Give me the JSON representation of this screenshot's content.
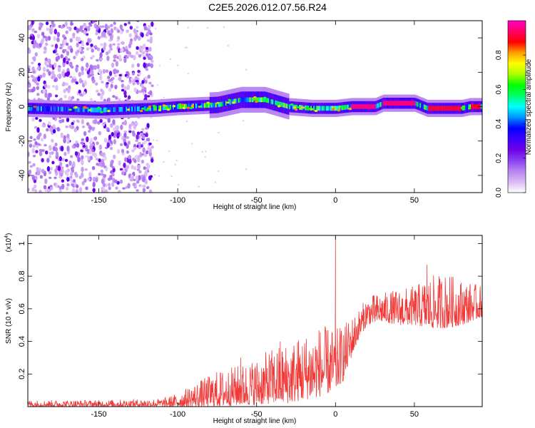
{
  "figure": {
    "title": "C2E5.2026.012.07.56.R24"
  },
  "colors": {
    "snr_line": "#f03a38",
    "frame": "#000000",
    "background": "#ffffff"
  },
  "chart_data": [
    {
      "type": "heatmap",
      "panel": "spectrogram",
      "xlabel": "Height of straight line (km)",
      "ylabel": "Frequency (Hz)",
      "xlim": [
        -195,
        93
      ],
      "ylim": [
        -50,
        50
      ],
      "x_ticks": [
        -150,
        -100,
        -50,
        0,
        50
      ],
      "y_ticks": [
        -40,
        -20,
        0,
        20,
        40
      ],
      "colorbar": {
        "label": "Normalized spectral amplitude",
        "range": [
          0,
          1
        ],
        "ticks": [
          0.0,
          0.2,
          0.4,
          0.6,
          0.8
        ],
        "colormap": [
          "#ffffff",
          "#d9b8f5",
          "#b784f0",
          "#8a3ff0",
          "#6f00e8",
          "#3c00ff",
          "#0000ff",
          "#0094ff",
          "#00ffff",
          "#00ff6a",
          "#00ff00",
          "#aaff00",
          "#ffff00",
          "#ffa000",
          "#ff0000",
          "#ff0066",
          "#ff00c8"
        ]
      },
      "center_track": [
        {
          "x": -195,
          "f": -1
        },
        {
          "x": -150,
          "f": -2
        },
        {
          "x": -115,
          "f": -1
        },
        {
          "x": -100,
          "f": 0
        },
        {
          "x": -75,
          "f": 1
        },
        {
          "x": -60,
          "f": 4
        },
        {
          "x": -45,
          "f": 4
        },
        {
          "x": -30,
          "f": 0
        },
        {
          "x": -15,
          "f": -1
        },
        {
          "x": 0,
          "f": -1
        },
        {
          "x": 10,
          "f": 0
        },
        {
          "x": 25,
          "f": 0
        },
        {
          "x": 30,
          "f": 2
        },
        {
          "x": 50,
          "f": 2
        },
        {
          "x": 58,
          "f": -1
        },
        {
          "x": 80,
          "f": -1
        },
        {
          "x": 85,
          "f": 0
        },
        {
          "x": 93,
          "f": 0
        }
      ],
      "peak_segments": [
        {
          "x0": 10,
          "x1": 25,
          "f": 0,
          "amplitude": 0.95
        },
        {
          "x0": 30,
          "x1": 50,
          "f": 2,
          "amplitude": 0.95
        },
        {
          "x0": 58,
          "x1": 80,
          "f": -1,
          "amplitude": 0.9
        },
        {
          "x0": 85,
          "x1": 92,
          "f": 0,
          "amplitude": 0.9
        }
      ],
      "noise_region": {
        "x0": -195,
        "x1": -116,
        "f_min": -50,
        "f_max": 50,
        "amplitude": 0.2
      }
    },
    {
      "type": "line",
      "panel": "snr",
      "xlabel": "Height of straight line (km)",
      "ylabel": "SNR (10 * v/v)",
      "y_multiplier": "(x10",
      "y_multiplier_exp": "4",
      "multiplier_close": ")",
      "xlim": [
        -195,
        93
      ],
      "ylim": [
        0,
        1.05
      ],
      "x_ticks": [
        -150,
        -100,
        -50,
        0,
        50
      ],
      "y_ticks": [
        0.2,
        0.4,
        0.6,
        0.8,
        1.0
      ],
      "series": [
        {
          "color": "#f03a38",
          "envelope": {
            "x": [
              -195,
              -150,
              -110,
              -100,
              -90,
              -75,
              -60,
              -50,
              -40,
              -30,
              -20,
              -10,
              0,
              5,
              10,
              15,
              20,
              30,
              40,
              50,
              60,
              70,
              80,
              93
            ],
            "lower": [
              0.0,
              0.0,
              0.0,
              0.0,
              0.0,
              0.0,
              0.01,
              0.01,
              0.02,
              0.02,
              0.04,
              0.06,
              0.1,
              0.16,
              0.3,
              0.42,
              0.5,
              0.52,
              0.5,
              0.5,
              0.48,
              0.48,
              0.5,
              0.55
            ],
            "upper": [
              0.04,
              0.04,
              0.05,
              0.08,
              0.14,
              0.22,
              0.26,
              0.3,
              0.36,
              0.4,
              0.45,
              0.5,
              0.48,
              0.5,
              0.55,
              0.6,
              0.68,
              0.7,
              0.72,
              0.74,
              0.8,
              0.82,
              0.78,
              0.74
            ]
          },
          "spikes": [
            {
              "x": 0,
              "y": 1.05
            },
            {
              "x": 58,
              "y": 0.87
            },
            {
              "x": -60,
              "y": 0.3
            },
            {
              "x": -35,
              "y": 0.4
            }
          ]
        }
      ]
    }
  ]
}
